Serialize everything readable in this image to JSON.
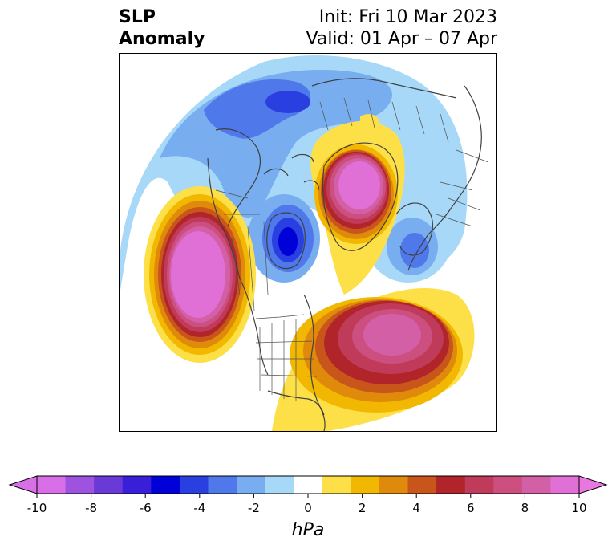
{
  "title": {
    "left_line1": "SLP",
    "left_line2": "Anomaly",
    "right_line1": "Init: Fri 10 Mar 2023",
    "right_line2": "Valid: 01 Apr – 07 Apr"
  },
  "colorbar": {
    "unit": "hPa",
    "ticks": [
      "-10",
      "-8",
      "-6",
      "-4",
      "-2",
      "0",
      "2",
      "4",
      "6",
      "8",
      "10"
    ],
    "levels": [
      -10,
      -9,
      -8,
      -7,
      -6,
      -5,
      -4,
      -3,
      -2,
      -1,
      1,
      2,
      3,
      4,
      5,
      6,
      7,
      8,
      9,
      10
    ],
    "colors": [
      "#d96fe6",
      "#9e52e0",
      "#6a3ad8",
      "#3a1fd8",
      "#0000d8",
      "#2a3fe0",
      "#4f78ea",
      "#78aef0",
      "#a8d8f8",
      "#ffffff",
      "#fde047",
      "#f2b700",
      "#e08a0b",
      "#c8551a",
      "#b0242a",
      "#c03a5a",
      "#cc4f80",
      "#d35fa6",
      "#e06fd6"
    ],
    "extend_low_color": "#d96fe6",
    "extend_high_color": "#e878e0"
  },
  "anomalies": [
    {
      "name": "ne-pacific-high",
      "peak": 10,
      "sign": "positive"
    },
    {
      "name": "greenland-high",
      "peak": 10,
      "sign": "positive"
    },
    {
      "name": "north-atlantic-high",
      "peak": 8,
      "sign": "positive"
    },
    {
      "name": "hudson-bay-low",
      "peak": -6,
      "sign": "negative"
    },
    {
      "name": "siberian-low",
      "peak": -4,
      "sign": "negative"
    },
    {
      "name": "scandinavian-low",
      "peak": -5,
      "sign": "negative"
    }
  ]
}
